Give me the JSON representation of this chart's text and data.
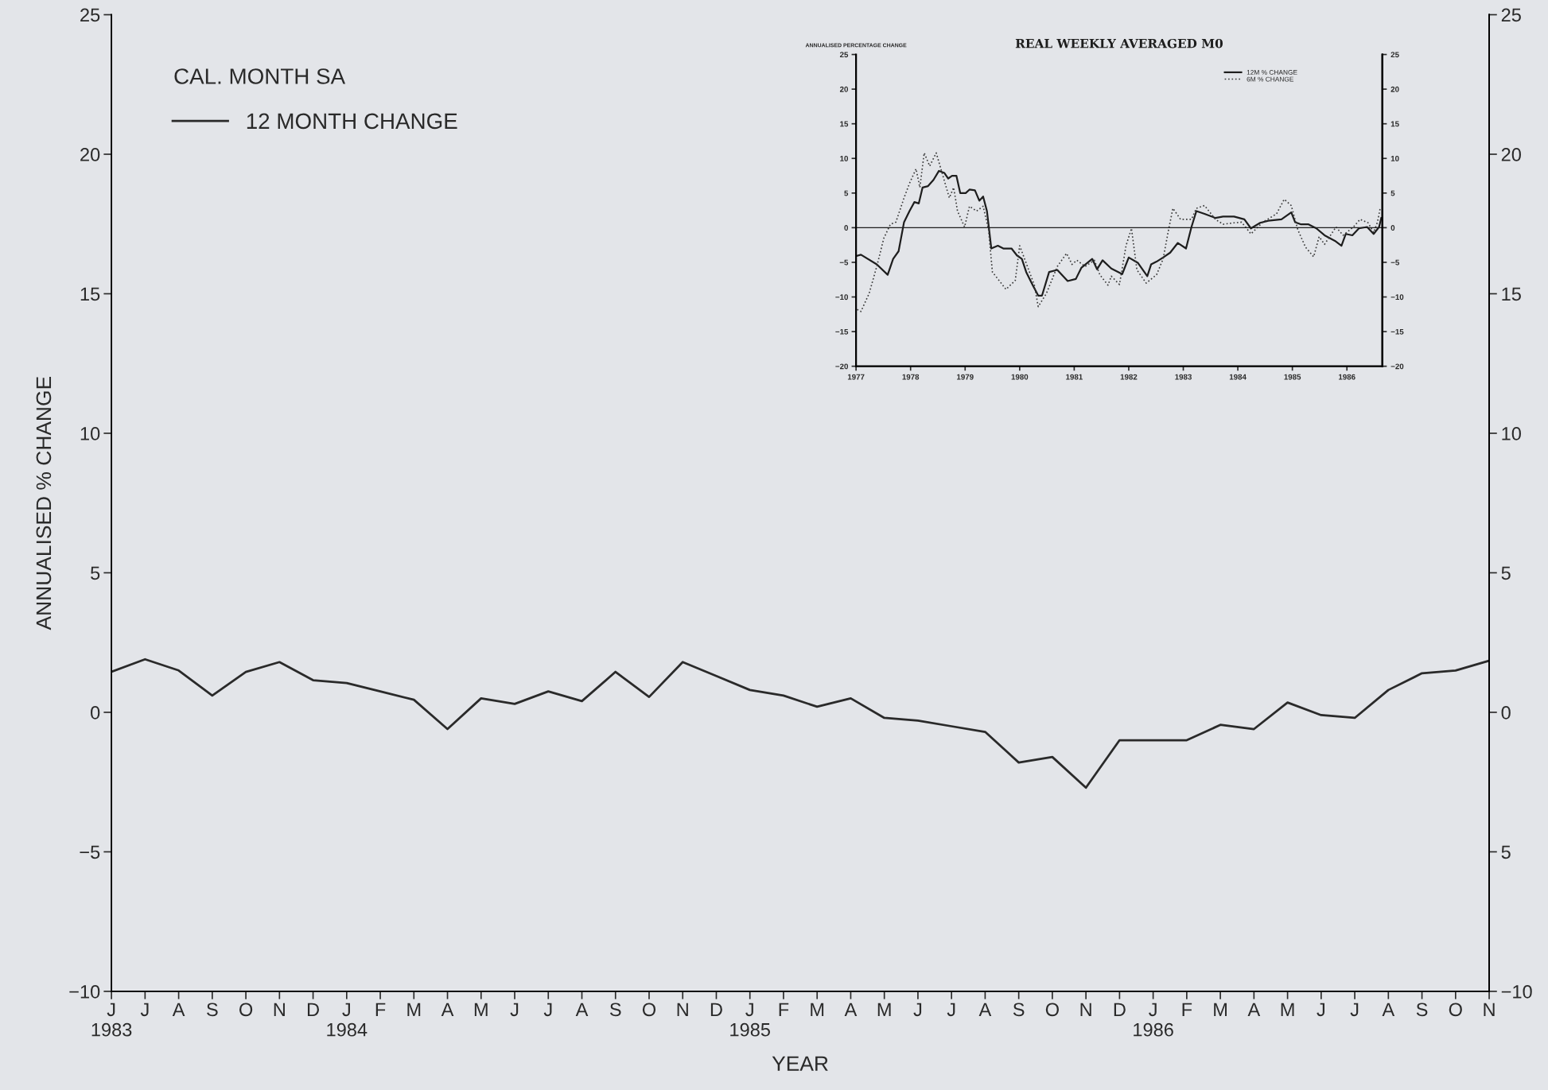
{
  "chart_data": [
    {
      "type": "line",
      "xlabel": "YEAR",
      "ylabel": "ANNUALISED % CHANGE",
      "annotations": [
        "CAL. MONTH SA"
      ],
      "categories": [
        "J\n1983",
        "J",
        "A",
        "S",
        "O",
        "N",
        "D",
        "J\n1984",
        "F",
        "M",
        "A",
        "M",
        "J",
        "J",
        "A",
        "S",
        "O",
        "N",
        "D",
        "J\n1985",
        "F",
        "M",
        "A",
        "M",
        "J",
        "J",
        "A",
        "S",
        "O",
        "N",
        "D",
        "J\n1986",
        "F",
        "M",
        "A",
        "M",
        "J",
        "J",
        "A",
        "S",
        "O",
        "N"
      ],
      "series": [
        {
          "name": "12 MONTH CHANGE",
          "color": "#2a2a2a",
          "line_style": "solid",
          "values": [
            1.45,
            1.9,
            1.5,
            0.6,
            1.45,
            1.8,
            1.15,
            1.05,
            0.75,
            0.45,
            -0.6,
            0.5,
            0.3,
            0.75,
            0.4,
            1.45,
            0.55,
            1.8,
            1.3,
            0.8,
            0.6,
            0.2,
            0.5,
            -0.2,
            -0.3,
            -0.5,
            -0.7,
            -1.8,
            -1.6,
            -2.7,
            -1.0,
            -1.0,
            -1.0,
            -0.45,
            -0.6,
            0.35,
            -0.1,
            -0.2,
            0.8,
            1.4,
            1.5,
            1.85
          ]
        }
      ],
      "ylim": [
        -10,
        25
      ],
      "yticks": [
        -10,
        -5,
        0,
        5,
        10,
        15,
        20,
        25
      ],
      "y2lim": [
        -10,
        25
      ],
      "y2ticks": [
        -10,
        {
          "value": -5,
          "label": "5"
        },
        0,
        5,
        10,
        15,
        20,
        25
      ],
      "grid": false,
      "legend": "top left",
      "marker": "none"
    },
    {
      "type": "line",
      "title": "REAL WEEKLY AVERAGED M0",
      "ylabel": "ANNUALISED PERCENTAGE CHANGE",
      "series": [
        {
          "name": "12M % CHANGE",
          "color": "#1e1e1e",
          "line_style": "solid",
          "x": [
            1977.0,
            1977.09,
            1977.38,
            1977.58,
            1977.68,
            1977.78,
            1977.88,
            1977.98,
            1978.07,
            1978.15,
            1978.22,
            1978.32,
            1978.42,
            1978.52,
            1978.62,
            1978.69,
            1978.76,
            1978.84,
            1978.91,
            1979.01,
            1979.08,
            1979.18,
            1979.26,
            1979.33,
            1979.4,
            1979.48,
            1979.6,
            1979.7,
            1979.85,
            1979.95,
            1980.04,
            1980.12,
            1980.24,
            1980.34,
            1980.41,
            1980.54,
            1980.69,
            1980.88,
            1981.03,
            1981.13,
            1981.33,
            1981.42,
            1981.52,
            1981.68,
            1981.88,
            1982.0,
            1982.17,
            1982.34,
            1982.41,
            1982.51,
            1982.63,
            1982.76,
            1982.9,
            1983.05,
            1983.15,
            1983.24,
            1983.39,
            1983.59,
            1983.73,
            1983.93,
            1984.12,
            1984.24,
            1984.41,
            1984.56,
            1984.8,
            1984.98,
            1985.05,
            1985.15,
            1985.29,
            1985.44,
            1985.59,
            1985.78,
            1985.9,
            1985.98,
            1986.1,
            1986.22,
            1986.37,
            1986.49,
            1986.59,
            1986.63
          ],
          "values": [
            -4.1,
            -3.9,
            -5.3,
            -6.8,
            -4.5,
            -3.4,
            0.8,
            2.4,
            3.7,
            3.5,
            5.8,
            6.0,
            6.9,
            8.2,
            7.9,
            7.1,
            7.5,
            7.5,
            5.0,
            5.0,
            5.5,
            5.4,
            3.9,
            4.5,
            2.4,
            -3.0,
            -2.6,
            -3.0,
            -3.0,
            -4.0,
            -4.5,
            -6.4,
            -8.3,
            -9.8,
            -9.8,
            -6.4,
            -6.1,
            -7.7,
            -7.4,
            -5.8,
            -4.5,
            -6.0,
            -4.7,
            -5.9,
            -6.7,
            -4.3,
            -5.1,
            -7.0,
            -5.3,
            -4.9,
            -4.3,
            -3.6,
            -2.2,
            -3.0,
            0.1,
            2.4,
            2.0,
            1.4,
            1.6,
            1.6,
            1.2,
            -0.1,
            0.7,
            1.0,
            1.2,
            2.2,
            0.8,
            0.5,
            0.5,
            -0.1,
            -1.1,
            -1.9,
            -2.6,
            -0.9,
            -1.1,
            -0.1,
            0.1,
            -0.9,
            0.1,
            1.4
          ]
        },
        {
          "name": "6M % CHANGE",
          "color": "#3a3a3a",
          "line_style": "dotted",
          "x": [
            1977.02,
            1977.09,
            1977.24,
            1977.38,
            1977.51,
            1977.63,
            1977.73,
            1977.88,
            1977.98,
            1978.1,
            1978.17,
            1978.25,
            1978.35,
            1978.47,
            1978.57,
            1978.71,
            1978.79,
            1978.86,
            1978.99,
            1979.08,
            1979.21,
            1979.33,
            1979.43,
            1979.5,
            1979.65,
            1979.75,
            1979.92,
            1980.0,
            1980.09,
            1980.27,
            1980.34,
            1980.49,
            1980.69,
            1980.86,
            1980.96,
            1981.05,
            1981.2,
            1981.37,
            1981.47,
            1981.62,
            1981.68,
            1981.83,
            1981.95,
            1982.05,
            1982.15,
            1982.32,
            1982.51,
            1982.63,
            1982.73,
            1982.81,
            1982.95,
            1983.15,
            1983.24,
            1983.39,
            1983.59,
            1983.73,
            1983.93,
            1984.07,
            1984.24,
            1984.46,
            1984.71,
            1984.85,
            1984.98,
            1985.1,
            1985.24,
            1985.39,
            1985.49,
            1985.59,
            1985.8,
            1985.93,
            1986.12,
            1986.24,
            1986.39,
            1986.49,
            1986.56,
            1986.61
          ],
          "values": [
            -11.8,
            -12.1,
            -9.5,
            -5.6,
            -1.5,
            0.5,
            0.8,
            4.3,
            6.4,
            8.5,
            5.8,
            10.8,
            8.9,
            10.8,
            8.1,
            4.3,
            5.8,
            2.4,
            0.1,
            3.1,
            2.4,
            3.1,
            -0.3,
            -6.4,
            -7.9,
            -8.9,
            -7.6,
            -2.6,
            -4.5,
            -8.3,
            -11.4,
            -9.5,
            -5.6,
            -3.7,
            -5.3,
            -4.7,
            -5.6,
            -4.7,
            -6.8,
            -8.3,
            -7.0,
            -8.2,
            -2.6,
            -0.1,
            -6.1,
            -8.0,
            -6.8,
            -4.5,
            -0.3,
            2.8,
            1.2,
            1.2,
            2.8,
            3.2,
            1.2,
            0.5,
            0.7,
            0.8,
            -0.9,
            0.8,
            2.0,
            4.1,
            3.2,
            -0.3,
            -2.8,
            -4.2,
            -1.3,
            -2.4,
            0.1,
            -1.1,
            0.1,
            1.2,
            0.7,
            -0.7,
            0.8,
            2.8
          ]
        }
      ],
      "xlim": [
        1977,
        1986.65
      ],
      "xticks": [
        1977,
        1978,
        1979,
        1980,
        1981,
        1982,
        1983,
        1984,
        1985,
        1986
      ],
      "ylim": [
        -20,
        25
      ],
      "yticks": [
        -20,
        -15,
        -10,
        -5,
        0,
        5,
        10,
        15,
        20,
        25
      ],
      "y2lim": [
        -20,
        25
      ],
      "y2ticks": [
        -20,
        -15,
        -10,
        -5,
        0,
        5,
        10,
        15,
        20,
        25
      ],
      "ref_lines": [
        {
          "axis": "y",
          "value": 0,
          "color": "#1e1e1e",
          "line_style": "solid"
        }
      ],
      "grid": false,
      "legend": "top right",
      "marker": "none"
    }
  ]
}
